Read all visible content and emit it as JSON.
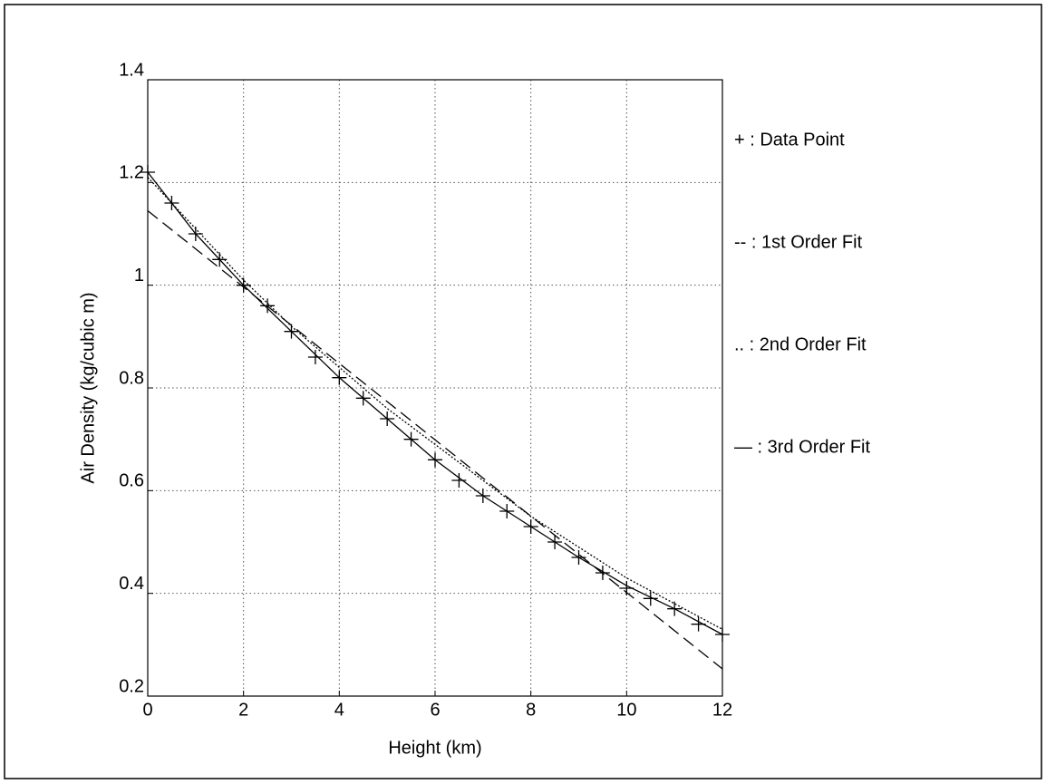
{
  "chart_data": {
    "type": "line",
    "xlabel": "Height (km)",
    "ylabel": "Air Density (kg/cubic m)",
    "xlim": [
      0,
      12
    ],
    "ylim": [
      0.2,
      1.4
    ],
    "xticks": [
      0,
      2,
      4,
      6,
      8,
      10,
      12
    ],
    "yticks": [
      0.2,
      0.4,
      0.6,
      0.8,
      1,
      1.2,
      1.4
    ],
    "grid": true,
    "legend": "right",
    "series": [
      {
        "name": "+ : Data Point",
        "color": "#000000",
        "linestyle": "none",
        "marker": "+",
        "x": [
          0,
          0.5,
          1,
          1.5,
          2,
          2.5,
          3,
          3.5,
          4,
          4.5,
          5,
          5.5,
          6,
          6.5,
          7,
          7.5,
          8,
          8.5,
          9,
          9.5,
          10,
          10.5,
          11,
          11.5,
          12
        ],
        "values": [
          1.22,
          1.16,
          1.1,
          1.05,
          1.0,
          0.96,
          0.91,
          0.86,
          0.82,
          0.78,
          0.74,
          0.7,
          0.66,
          0.62,
          0.59,
          0.56,
          0.53,
          0.5,
          0.47,
          0.44,
          0.41,
          0.39,
          0.37,
          0.34,
          0.32
        ]
      },
      {
        "name": "-- : 1st Order Fit",
        "color": "#000000",
        "linestyle": "dashed",
        "marker": "none",
        "x": [
          0,
          12
        ],
        "values": [
          1.145,
          0.253
        ]
      },
      {
        "name": ".. : 2nd Order Fit",
        "color": "#000000",
        "linestyle": "dotted",
        "marker": "none",
        "x": [
          0,
          1,
          2,
          3,
          4,
          5,
          6,
          7,
          8,
          9,
          10,
          11,
          12
        ],
        "values": [
          1.21,
          1.11,
          1.01,
          0.92,
          0.84,
          0.76,
          0.69,
          0.62,
          0.55,
          0.49,
          0.43,
          0.38,
          0.33
        ]
      },
      {
        "name": "— : 3rd Order Fit",
        "color": "#000000",
        "linestyle": "solid",
        "marker": "none",
        "x": [
          0,
          1,
          2,
          3,
          4,
          5,
          6,
          7,
          8,
          9,
          10,
          11,
          12
        ],
        "values": [
          1.22,
          1.1,
          1.0,
          0.91,
          0.82,
          0.74,
          0.66,
          0.59,
          0.53,
          0.47,
          0.415,
          0.37,
          0.32
        ]
      }
    ]
  }
}
